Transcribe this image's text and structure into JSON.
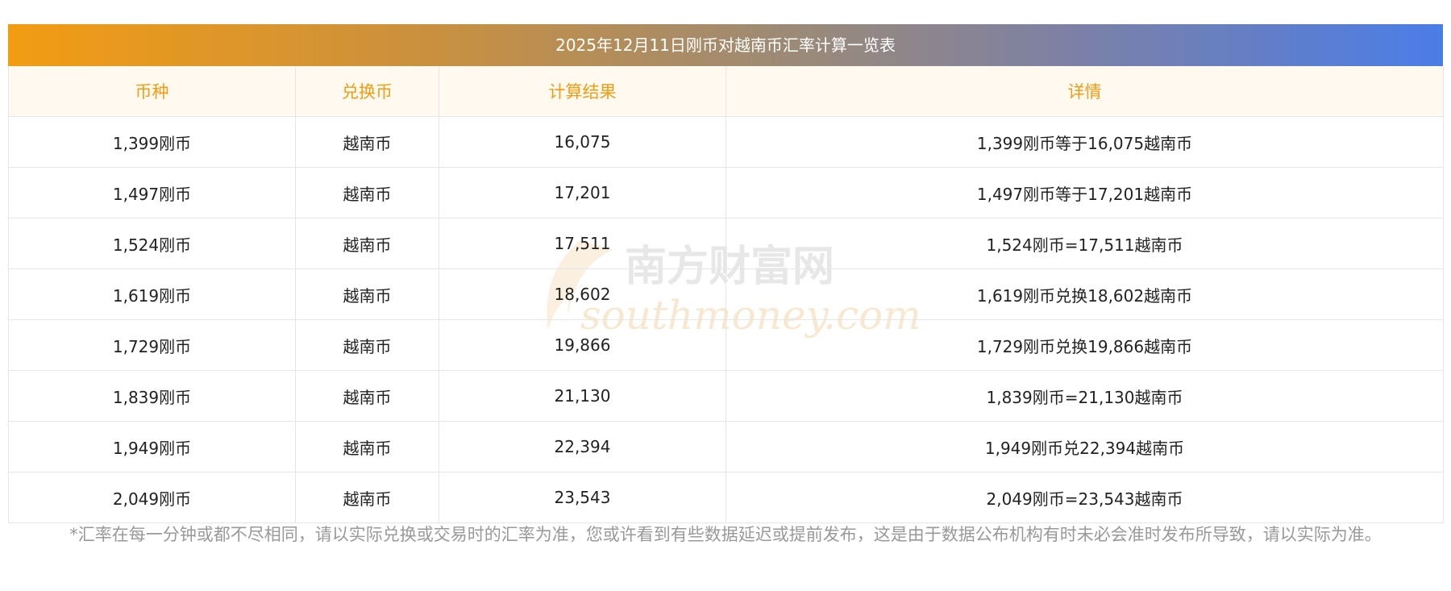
{
  "title": "2025年12月11日刚币对越南币汇率计算一览表",
  "headers": [
    "币种",
    "兑换币",
    "计算结果",
    "详情"
  ],
  "rows": [
    [
      "1,399刚币",
      "越南币",
      "16,075",
      "1,399刚币等于16,075越南币"
    ],
    [
      "1,497刚币",
      "越南币",
      "17,201",
      "1,497刚币等于17,201越南币"
    ],
    [
      "1,524刚币",
      "越南币",
      "17,511",
      "1,524刚币=17,511越南币"
    ],
    [
      "1,619刚币",
      "越南币",
      "18,602",
      "1,619刚币兑换18,602越南币"
    ],
    [
      "1,729刚币",
      "越南币",
      "19,866",
      "1,729刚币兑换19,866越南币"
    ],
    [
      "1,839刚币",
      "越南币",
      "21,130",
      "1,839刚币=21,130越南币"
    ],
    [
      "1,949刚币",
      "越南币",
      "22,394",
      "1,949刚币兑22,394越南币"
    ],
    [
      "2,049刚币",
      "越南币",
      "23,543",
      "2,049刚币=23,543越南币"
    ]
  ],
  "watermark": {
    "cn": "南方财富网",
    "en": "southmoney.com"
  },
  "note": "*汇率在每一分钟或都不尽相同，请以实际兑换或交易时的汇率为准，您或许看到有些数据延迟或提前发布，这是由于数据公布机构有时未必会准时发布所导致，请以实际为准。",
  "colors": {
    "header_text": "#f39c12",
    "header_bg": "#fff9f0",
    "gradient_start": "#f39c12",
    "gradient_end": "#4a7de8",
    "note_text": "#999999"
  }
}
